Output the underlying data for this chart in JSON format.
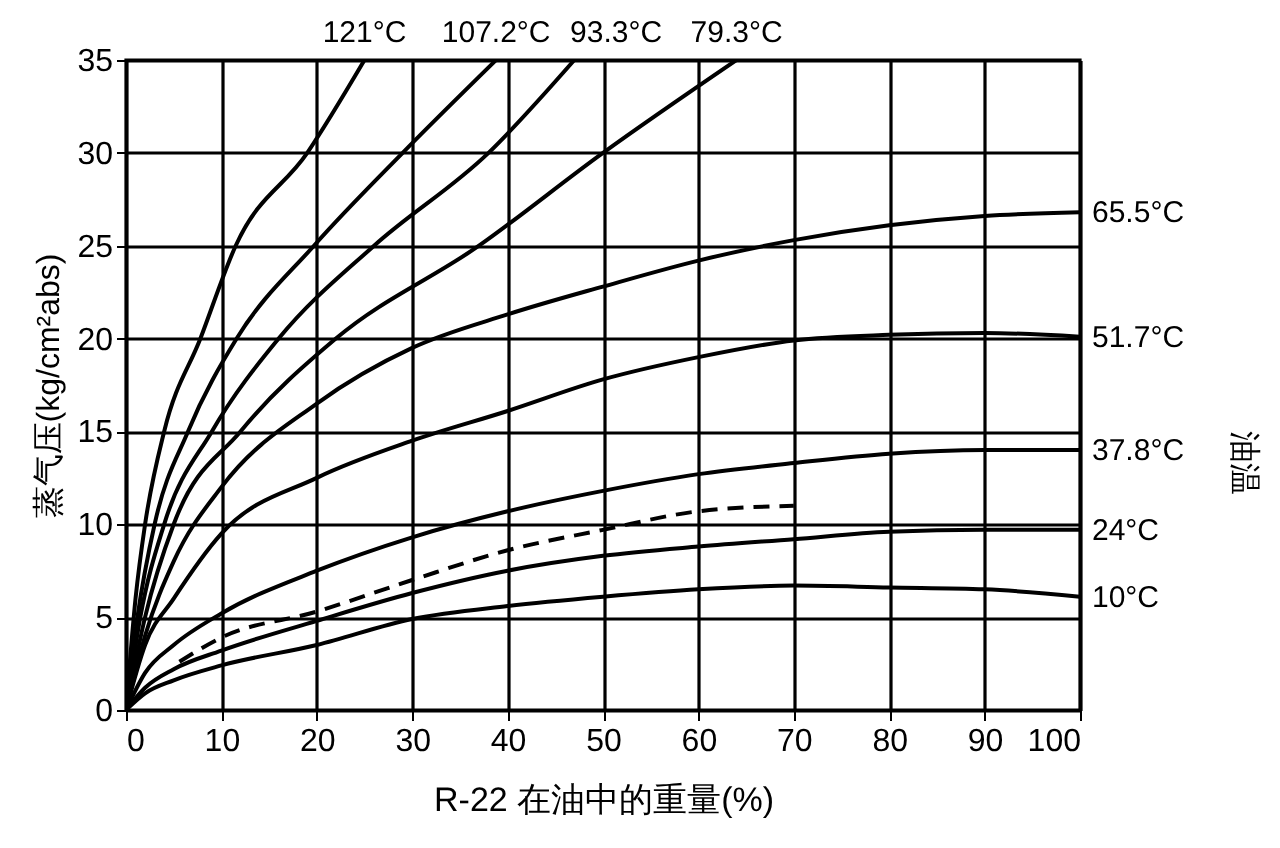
{
  "chart_data": {
    "type": "line",
    "xlabel": "R-22 在油中的重量(%)",
    "ylabel": "蒸气压(kg/cm²abs)",
    "xlim": [
      0,
      100
    ],
    "ylim": [
      0,
      35
    ],
    "xticks": [
      0,
      10,
      20,
      30,
      40,
      50,
      60,
      70,
      80,
      90,
      100
    ],
    "yticks": [
      0,
      5,
      10,
      15,
      20,
      25,
      30,
      35
    ],
    "grid": true,
    "marker": "none",
    "line_style": "solid",
    "annotations": [
      "油温"
    ],
    "series": [
      {
        "name": "121°C",
        "color": "#000000",
        "x": [
          0,
          1,
          2,
          4,
          7.8,
          11.5,
          19,
          25
        ],
        "values": [
          0,
          6,
          10,
          15,
          20,
          25,
          30,
          35
        ]
      },
      {
        "name": "107.2°C",
        "color": "#000000",
        "x": [
          0,
          1.2,
          3,
          6.5,
          11.6,
          19.7,
          29,
          38.8
        ],
        "values": [
          0,
          5,
          10,
          15,
          20,
          25,
          30,
          35
        ]
      },
      {
        "name": "93.3°C",
        "color": "#000000",
        "x": [
          0,
          1.5,
          4,
          9,
          16,
          26,
          38,
          47
        ],
        "values": [
          0,
          5,
          10,
          15,
          20,
          25,
          30,
          35
        ]
      },
      {
        "name": "79.3°C",
        "color": "#000000",
        "x": [
          0,
          2,
          5,
          12,
          22,
          37,
          50,
          64
        ],
        "values": [
          0,
          5,
          10,
          15,
          20,
          25,
          30,
          35
        ]
      },
      {
        "name": "65.5°C",
        "color": "#000000",
        "x": [
          0,
          2,
          5,
          10,
          20,
          30,
          40,
          50,
          60,
          70,
          80,
          90,
          100
        ],
        "values": [
          0,
          4,
          8,
          12,
          16.5,
          19.5,
          21.3,
          22.8,
          24.2,
          25.3,
          26.1,
          26.6,
          26.8
        ]
      },
      {
        "name": "51.7°C",
        "color": "#000000",
        "x": [
          0,
          2,
          5,
          10,
          20,
          30,
          40,
          50,
          60,
          70,
          80,
          90,
          100
        ],
        "values": [
          0,
          3.5,
          6,
          9.5,
          12.5,
          14.5,
          16.1,
          17.8,
          19,
          19.9,
          20.2,
          20.3,
          20.1
        ]
      },
      {
        "name": "37.8°C",
        "color": "#000000",
        "x": [
          0,
          2,
          5,
          10,
          20,
          30,
          40,
          50,
          60,
          70,
          80,
          90,
          100
        ],
        "values": [
          0,
          2,
          3.5,
          5.2,
          7.5,
          9.3,
          10.7,
          11.8,
          12.7,
          13.3,
          13.8,
          14,
          14
        ]
      },
      {
        "color": "#000000",
        "line_style": "dashed",
        "x": [
          5.6,
          10,
          20,
          30,
          40,
          50,
          60,
          70
        ],
        "values": [
          2.6,
          3.9,
          5.3,
          7,
          8.6,
          9.7,
          10.7,
          11
        ]
      },
      {
        "name": "24°C",
        "color": "#000000",
        "x": [
          0,
          2,
          5,
          10,
          20,
          30,
          40,
          50,
          60,
          70,
          80,
          90,
          100
        ],
        "values": [
          0,
          1.2,
          2.2,
          3.2,
          4.8,
          6.3,
          7.5,
          8.3,
          8.8,
          9.2,
          9.6,
          9.7,
          9.7
        ]
      },
      {
        "name": "10°C",
        "color": "#000000",
        "x": [
          0,
          2,
          5,
          10,
          20,
          30,
          40,
          50,
          60,
          70,
          80,
          90,
          100
        ],
        "values": [
          0,
          0.9,
          1.6,
          2.4,
          3.5,
          4.9,
          5.6,
          6.1,
          6.5,
          6.7,
          6.6,
          6.5,
          6.1
        ]
      }
    ]
  }
}
